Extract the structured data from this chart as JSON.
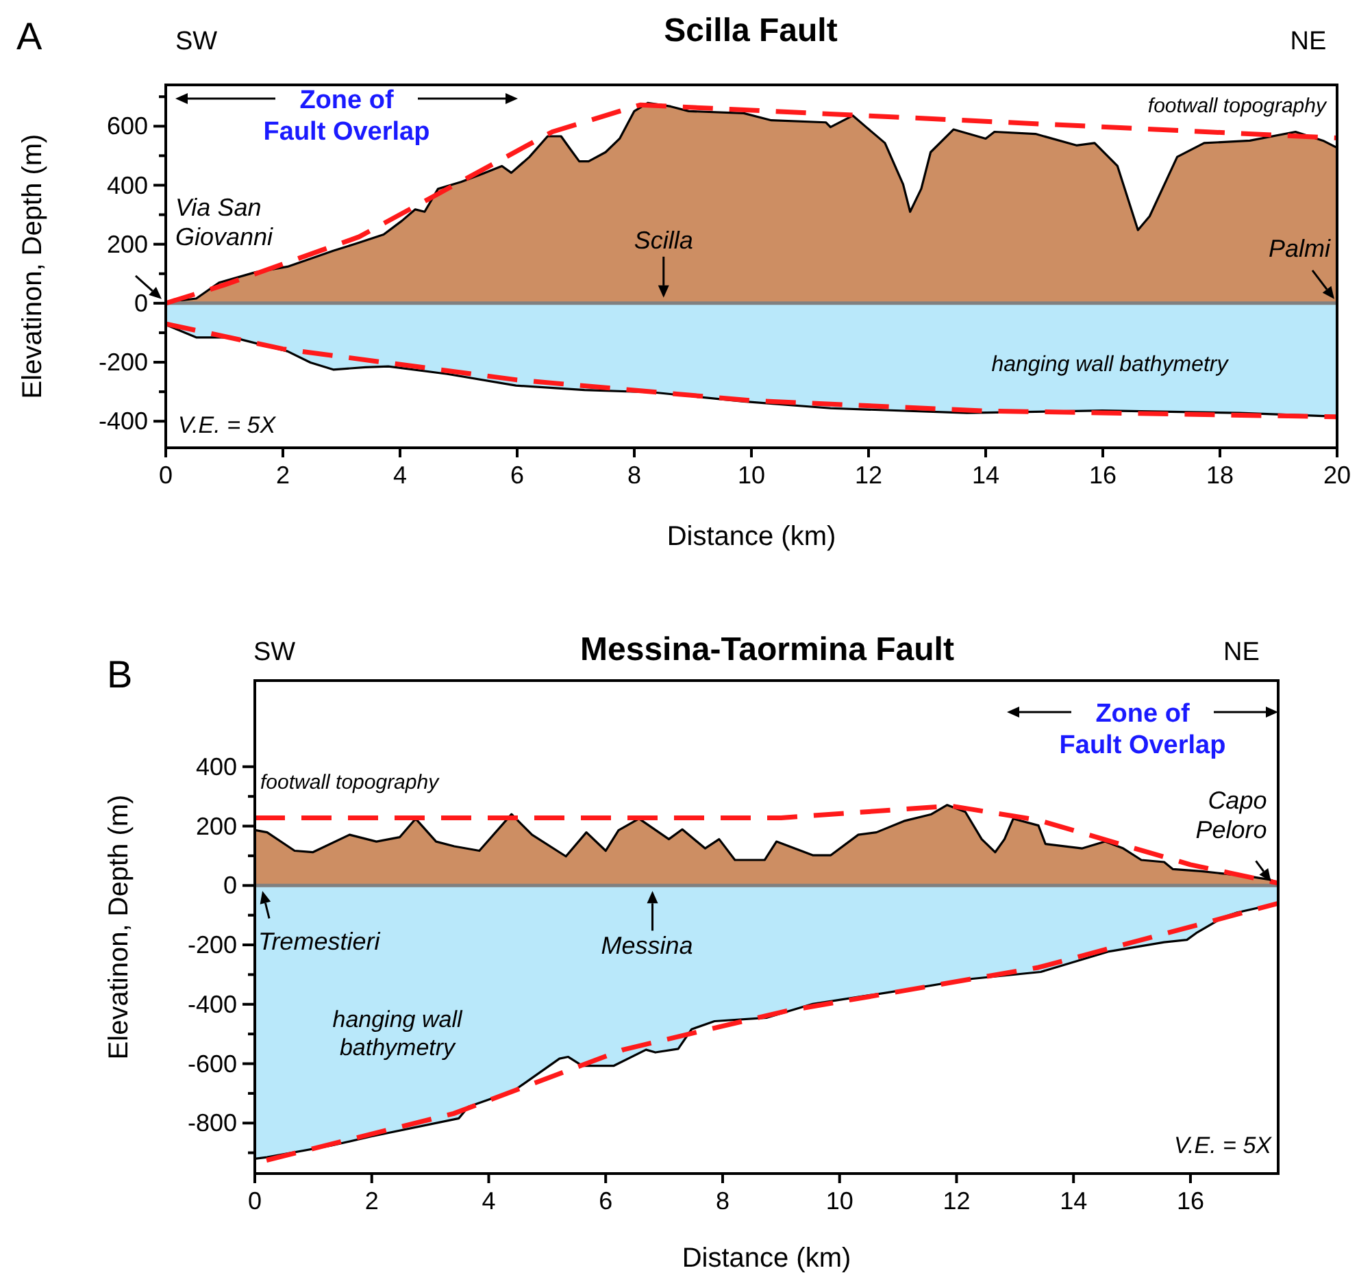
{
  "chart_data": [
    {
      "type": "area",
      "title": "Scilla Fault",
      "xlabel": "Distance (km)",
      "ylabel": "Elevatinon, Depth (m)",
      "xlim": [
        0,
        20
      ],
      "ylim": [
        -490,
        740
      ],
      "xticks": [
        0,
        2,
        4,
        6,
        8,
        10,
        12,
        14,
        16,
        18,
        20
      ],
      "yticks": [
        -400,
        {
          "value": -300,
          "label": null
        },
        -200,
        {
          "value": -100,
          "label": null
        },
        0,
        {
          "value": 100,
          "label": null
        },
        200,
        {
          "value": 300,
          "label": null
        },
        400,
        {
          "value": 500,
          "label": null
        },
        600,
        {
          "value": 700,
          "label": null
        }
      ],
      "series": [
        {
          "name": "footwall topography",
          "type": "area",
          "color": "#cd8e63",
          "x": [
            0,
            0.05,
            0.52,
            0.91,
            1.53,
            2.08,
            2.86,
            3.25,
            3.72,
            4.03,
            4.26,
            4.42,
            4.65,
            5.04,
            5.35,
            5.74,
            5.9,
            6.21,
            6.52,
            6.75,
            6.89,
            7.06,
            7.22,
            7.51,
            7.75,
            8.0,
            8.23,
            8.62,
            8.93,
            9.87,
            10.34,
            11.27,
            11.35,
            11.73,
            11.96,
            12.28,
            12.59,
            12.71,
            12.9,
            13.06,
            13.45,
            14.0,
            14.15,
            14.85,
            15.55,
            15.86,
            16.25,
            16.6,
            16.8,
            17.27,
            17.73,
            18.51,
            19.29,
            19.76,
            20
          ],
          "values": [
            0,
            5,
            16,
            70,
            105,
            124,
            178,
            202,
            233,
            279,
            318,
            310,
            388,
            411,
            434,
            465,
            442,
            496,
            566,
            566,
            527,
            481,
            481,
            512,
            558,
            651,
            679,
            667,
            651,
            644,
            620,
            613,
            597,
            636,
            597,
            543,
            403,
            310,
            388,
            512,
            589,
            558,
            581,
            574,
            535,
            543,
            465,
            248,
            295,
            496,
            543,
            551,
            581,
            551,
            527
          ]
        },
        {
          "name": "hanging wall bathymetry",
          "type": "area",
          "color": "#b9e8fa",
          "x": [
            0,
            0.05,
            0.52,
            1.15,
            2.08,
            2.47,
            2.86,
            3.41,
            3.8,
            4.81,
            5.98,
            7.15,
            8.32,
            9.87,
            11.35,
            13.68,
            15.99,
            18.33,
            20
          ],
          "values": [
            -75,
            -77,
            -116,
            -116,
            -163,
            -201,
            -225,
            -217,
            -214,
            -240,
            -279,
            -294,
            -302,
            -333,
            -356,
            -372,
            -364,
            -372,
            -384
          ]
        },
        {
          "type": "line",
          "color": "#ff1a1a",
          "line_style": "dashed",
          "x": [
            0,
            1,
            3.3,
            6.6,
            8.1,
            20
          ],
          "values": [
            0,
            62,
            225,
            581,
            672,
            560
          ]
        },
        {
          "type": "line",
          "color": "#ff1a1a",
          "line_style": "dashed",
          "x": [
            0,
            2,
            6,
            10,
            14,
            20
          ],
          "values": [
            -70,
            -155,
            -260,
            -330,
            -365,
            -385
          ]
        }
      ],
      "ref_lines": [
        {
          "axis": "y",
          "value": 0,
          "color": "#808080"
        }
      ],
      "annotations": [
        "A",
        "SW",
        "NE",
        "V.E. = 5X",
        {
          "text": "Via San Giovanni",
          "x": 0,
          "y": 0
        },
        {
          "text": "Scilla",
          "x": 8.5,
          "y": 0
        },
        {
          "text": "Palmi",
          "x": 20,
          "y": 0
        },
        "Zone of Fault Overlap"
      ]
    },
    {
      "type": "area",
      "title": "Messina-Taormina Fault",
      "xlabel": "Distance (km)",
      "ylabel": "Elevatinon, Depth (m)",
      "xlim": [
        0,
        17.5
      ],
      "ylim": [
        -970,
        690
      ],
      "xticks": [
        0,
        2,
        4,
        6,
        8,
        10,
        12,
        14,
        16
      ],
      "yticks": [
        {
          "value": -900,
          "label": null
        },
        -800,
        {
          "value": -700,
          "label": null
        },
        -600,
        {
          "value": -500,
          "label": null
        },
        -400,
        {
          "value": -300,
          "label": null
        },
        -200,
        {
          "value": -100,
          "label": null
        },
        0,
        {
          "value": 100,
          "label": null
        },
        200,
        {
          "value": 300,
          "label": null
        },
        400
      ],
      "series": [
        {
          "name": "footwall topography",
          "type": "area",
          "color": "#cd8e63",
          "x": [
            0,
            0.02,
            0.21,
            0.68,
            0.99,
            1.62,
            2.08,
            2.48,
            2.75,
            3.1,
            3.41,
            3.84,
            4.39,
            4.74,
            5.32,
            5.67,
            6.0,
            6.22,
            6.57,
            7.08,
            7.31,
            7.7,
            7.94,
            8.21,
            8.72,
            8.92,
            9.54,
            9.85,
            10.32,
            10.63,
            11.1,
            11.57,
            11.84,
            12.15,
            12.43,
            12.66,
            12.82,
            12.97,
            13.4,
            13.52,
            14.15,
            14.54,
            14.85,
            15.16,
            15.55,
            15.7,
            16.18,
            16.96,
            17.35,
            17.5
          ],
          "values": [
            186,
            186,
            179,
            117,
            112,
            171,
            148,
            163,
            225,
            148,
            132,
            117,
            240,
            171,
            98,
            179,
            117,
            186,
            225,
            156,
            189,
            125,
            156,
            86,
            86,
            148,
            102,
            102,
            171,
            179,
            217,
            240,
            271,
            248,
            156,
            112,
            156,
            225,
            202,
            140,
            125,
            148,
            125,
            86,
            79,
            55,
            48,
            32,
            20,
            9
          ]
        },
        {
          "name": "hanging wall bathymetry",
          "type": "area",
          "color": "#b9e8fa",
          "x": [
            0,
            0.21,
            1.3,
            1.99,
            3.49,
            3.65,
            4.43,
            5.21,
            5.36,
            5.6,
            6.14,
            6.69,
            6.85,
            7.24,
            7.47,
            7.86,
            8.76,
            9.54,
            11.1,
            12.27,
            13.44,
            14.61,
            15.55,
            15.94,
            16.1,
            16.57,
            16.8,
            17.5
          ],
          "values": [
            -920,
            -915,
            -876,
            -845,
            -784,
            -745,
            -691,
            -583,
            -577,
            -607,
            -607,
            -553,
            -562,
            -550,
            -484,
            -457,
            -445,
            -399,
            -352,
            -314,
            -291,
            -222,
            -191,
            -183,
            -160,
            -106,
            -91,
            -60
          ]
        },
        {
          "type": "line",
          "color": "#ff1a1a",
          "line_style": "dashed",
          "x": [
            0,
            9,
            11.9,
            13.4,
            16,
            17.5
          ],
          "values": [
            228,
            228,
            268,
            220,
            70,
            8
          ]
        },
        {
          "type": "line",
          "color": "#ff1a1a",
          "line_style": "dashed",
          "x": [
            0.2,
            3.4,
            6.3,
            9.1,
            13.4,
            17.5
          ],
          "values": [
            -925,
            -768,
            -553,
            -422,
            -276,
            -60
          ]
        }
      ],
      "ref_lines": [
        {
          "axis": "y",
          "value": 0,
          "color": "#808080"
        }
      ],
      "annotations": [
        "B",
        "SW",
        "NE",
        "V.E. = 5X",
        {
          "text": "Tremestieri",
          "x": 0.2,
          "y": 0
        },
        {
          "text": "Messina",
          "x": 6.8,
          "y": 0
        },
        {
          "text": "Capo Peloro",
          "x": 17.4,
          "y": 0
        },
        "Zone of Fault Overlap"
      ]
    }
  ]
}
